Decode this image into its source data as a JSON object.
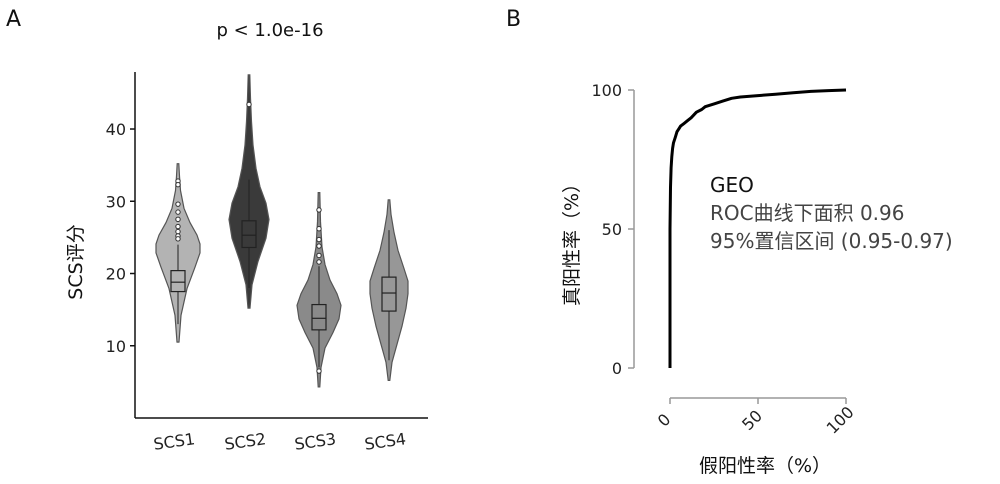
{
  "panels": {
    "a_label": "A",
    "b_label": "B"
  },
  "chart_data": [
    {
      "type": "violin",
      "title": "p < 1.0e-16",
      "xlabel": "",
      "ylabel": "SCS评分",
      "ylim": [
        0,
        49
      ],
      "yticks": [
        10,
        20,
        30,
        40
      ],
      "categories": [
        "SCS1",
        "SCS2",
        "SCS3",
        "SCS4"
      ],
      "series": [
        {
          "name": "SCS1",
          "color": "#b3b3b3",
          "min": 10.5,
          "max": 35.2,
          "q1": 17.5,
          "median": 18.8,
          "q3": 20.4,
          "whisker_low": 13.0,
          "whisker_high": 24.0,
          "outliers": [
            32.8,
            32.3,
            29.6,
            28.5,
            27.5,
            26.5,
            25.8,
            25.2,
            24.8
          ]
        },
        {
          "name": "SCS2",
          "color": "#3a3a3a",
          "min": 15.2,
          "max": 47.5,
          "q1": 23.6,
          "median": 25.3,
          "q3": 27.3,
          "whisker_low": 18.0,
          "whisker_high": 33.0,
          "outliers": [
            43.4
          ]
        },
        {
          "name": "SCS3",
          "color": "#8a8a8a",
          "min": 4.3,
          "max": 31.2,
          "q1": 12.2,
          "median": 13.8,
          "q3": 15.7,
          "whisker_low": 7.0,
          "whisker_high": 21.0,
          "outliers": [
            28.8,
            26.2,
            24.7,
            23.8,
            22.5,
            21.6,
            6.5
          ]
        },
        {
          "name": "SCS4",
          "color": "#979797",
          "min": 5.2,
          "max": 30.2,
          "q1": 14.8,
          "median": 17.3,
          "q3": 19.5,
          "whisker_low": 8.0,
          "whisker_high": 26.0,
          "outliers": []
        }
      ]
    },
    {
      "type": "line",
      "subtype": "roc",
      "xlabel": "假阳性率（%）",
      "ylabel": "真阳性率（%）",
      "xlim": [
        0,
        100
      ],
      "ylim": [
        0,
        100
      ],
      "xticks": [
        0,
        50,
        100
      ],
      "yticks": [
        0,
        50,
        100
      ],
      "x": [
        0,
        0,
        0.3,
        0.6,
        1,
        1.5,
        2,
        3,
        4,
        5,
        6,
        8,
        10,
        12,
        15,
        18,
        20,
        25,
        30,
        35,
        40,
        50,
        60,
        70,
        80,
        90,
        100
      ],
      "y": [
        0,
        50,
        65,
        72,
        76,
        79,
        81,
        83,
        85,
        86,
        87,
        88,
        89,
        90,
        92,
        93,
        94,
        95,
        96,
        97,
        97.5,
        98,
        98.5,
        99,
        99.5,
        99.8,
        100
      ],
      "legend_title": "GEO",
      "auc_text": "ROC曲线下面积 0.96",
      "ci_text": "95%置信区间 (0.95-0.97)"
    }
  ]
}
